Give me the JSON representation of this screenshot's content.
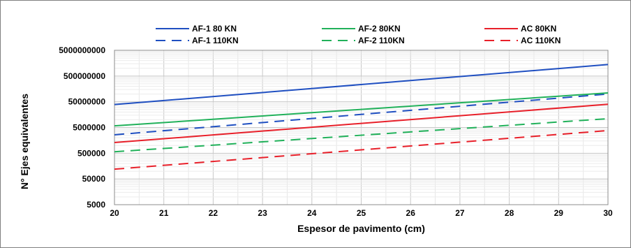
{
  "chart_data": {
    "type": "line",
    "title": "",
    "xlabel": "Espesor de pavimento (cm)",
    "ylabel": "N° Ejes equivalentes",
    "xlim": [
      20,
      30
    ],
    "ylim": [
      5000,
      5000000000
    ],
    "yscale": "log",
    "xticks": [
      "20",
      "21",
      "22",
      "23",
      "24",
      "25",
      "26",
      "27",
      "28",
      "29",
      "30"
    ],
    "yticks": [
      "5000",
      "50000",
      "500000",
      "5000000",
      "50000000",
      "500000000",
      "5000000000"
    ],
    "ytick_values": [
      5000,
      50000,
      500000,
      5000000,
      50000000,
      500000000,
      5000000000
    ],
    "grid": true,
    "legend_position": "top",
    "x": [
      20,
      30
    ],
    "series": [
      {
        "name": "AF-1 80 KN",
        "values": [
          39000000,
          1400000000
        ],
        "color": "#1f4fc1",
        "dash": "solid"
      },
      {
        "name": "AF-1 110KN",
        "values": [
          2600000,
          100000000
        ],
        "color": "#1f4fc1",
        "dash": "dashed"
      },
      {
        "name": "AF-2 80KN",
        "values": [
          5800000,
          110000000
        ],
        "color": "#21b15a",
        "dash": "solid"
      },
      {
        "name": "AF-2 110KN",
        "values": [
          570000,
          11000000
        ],
        "color": "#21b15a",
        "dash": "dashed"
      },
      {
        "name": "AC 80KN",
        "values": [
          1300000,
          40000000
        ],
        "color": "#e8202a",
        "dash": "solid"
      },
      {
        "name": "AC 110KN",
        "values": [
          120000,
          3800000
        ],
        "color": "#e8202a",
        "dash": "dashed"
      }
    ]
  }
}
